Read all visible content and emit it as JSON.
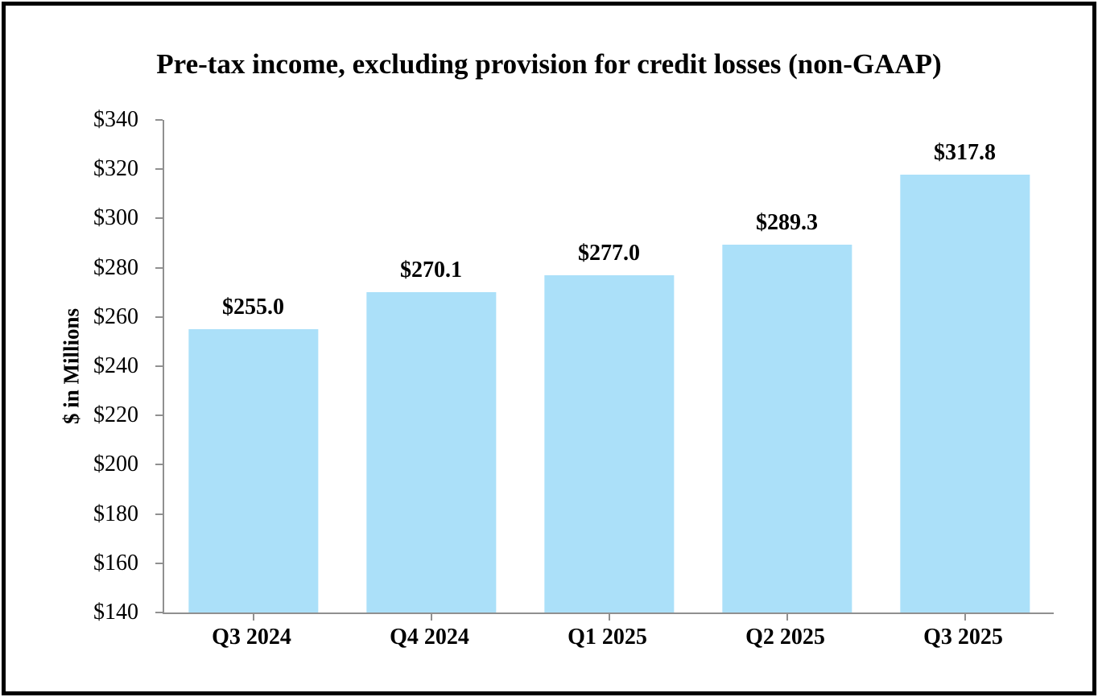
{
  "chart_data": {
    "type": "bar",
    "title": "Pre-tax income, excluding provision for credit losses (non-GAAP)",
    "ylabel": "$ in Millions",
    "xlabel": "",
    "categories": [
      "Q3 2024",
      "Q4 2024",
      "Q1 2025",
      "Q2 2025",
      "Q3 2025"
    ],
    "values": [
      255.0,
      270.1,
      277.0,
      289.3,
      317.8
    ],
    "data_labels": [
      "$255.0",
      "$270.1",
      "$277.0",
      "$289.3",
      "$317.8"
    ],
    "ylim": [
      140,
      340
    ],
    "ytick_step": 20,
    "ytick_labels": [
      "$140",
      "$160",
      "$180",
      "$200",
      "$220",
      "$240",
      "$260",
      "$280",
      "$300",
      "$320",
      "$340"
    ],
    "grid": false,
    "legend": null,
    "bar_color": "#ABE0F9",
    "axis_color": "#909090",
    "text_color": "#000000",
    "frame_color": "#000000"
  }
}
